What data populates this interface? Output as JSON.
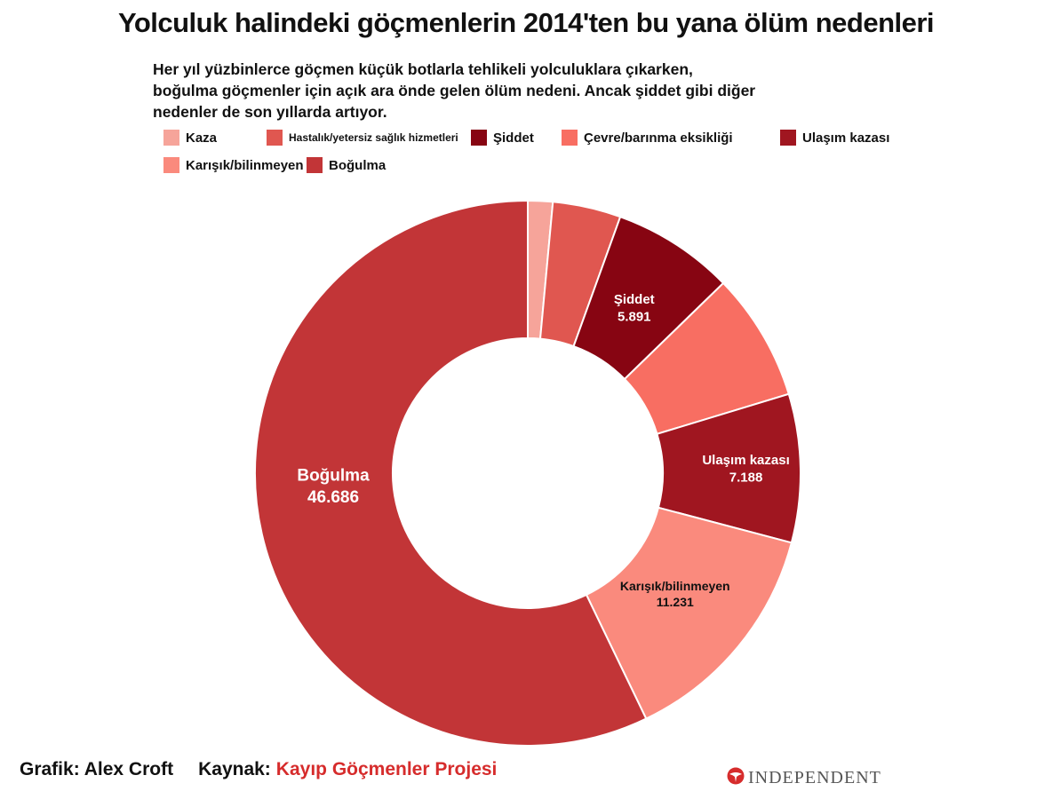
{
  "title": "Yolculuk halindeki göçmenlerin 2014'ten bu yana ölüm nedenleri",
  "subtitle": "Her yıl yüzbinlerce göçmen küçük botlarla tehlikeli yolculuklara çıkarken, boğulma göçmenler için açık ara önde gelen ölüm nedeni. Ancak şiddet gibi diğer nedenler de son yıllarda artıyor.",
  "footer": {
    "credit": "Grafik: Alex Croft",
    "source_label": "Kaynak:",
    "source_name": "Kayıp Göçmenler Projesi"
  },
  "brand": {
    "name": "INDEPENDENT",
    "icon": "eagle-logo-icon"
  },
  "chart_data": {
    "type": "pie",
    "donut": true,
    "legend_position": "top",
    "slices": [
      {
        "label": "Kaza",
        "value": 1200,
        "color": "#f6a49a",
        "data_label": ""
      },
      {
        "label": "Hastalık/yetersiz sağlık hizmetleri",
        "value": 3300,
        "color": "#e05750",
        "data_label": ""
      },
      {
        "label": "Şiddet",
        "value": 5891,
        "color": "#870512",
        "data_label": "5.891"
      },
      {
        "label": "Çevre/barınma eksikliği",
        "value": 6200,
        "color": "#f86e62",
        "data_label": ""
      },
      {
        "label": "Ulaşım kazası",
        "value": 7188,
        "color": "#a01620",
        "data_label": "7.188"
      },
      {
        "label": "Karışık/bilinmeyen",
        "value": 11231,
        "color": "#fa8a7d",
        "data_label": "11.231"
      },
      {
        "label": "Boğulma",
        "value": 46686,
        "color": "#c23537",
        "data_label": "46.686"
      }
    ]
  }
}
